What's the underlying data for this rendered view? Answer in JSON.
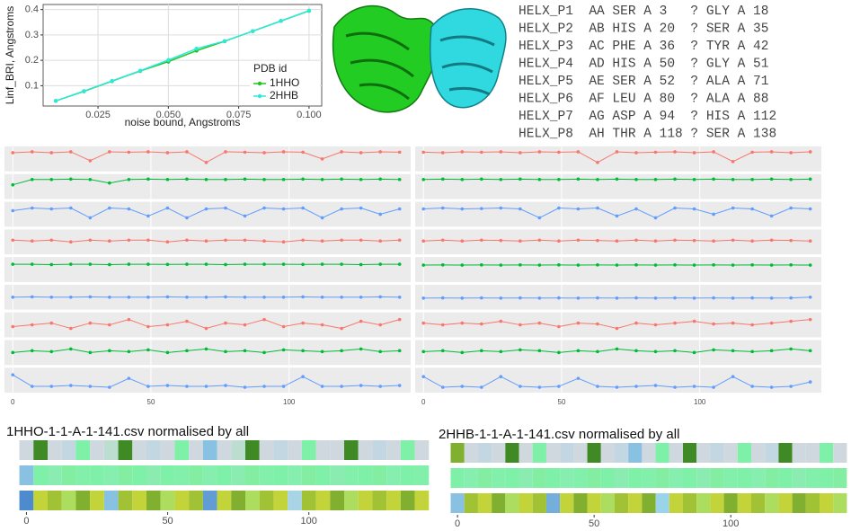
{
  "chart_data": [
    {
      "type": "line",
      "ylabel": "Linf_BRI, Angstroms",
      "xlabel": "noise bound, Angstroms",
      "legend_title": "PDB id",
      "legend": "bottom-right",
      "grid": true,
      "x": [
        0.01,
        0.02,
        0.03,
        0.04,
        0.05,
        0.06,
        0.07,
        0.08,
        0.09,
        0.1
      ],
      "series": [
        {
          "name": "1HHO",
          "color": "#1fc41f",
          "values": [
            0.04,
            0.078,
            0.118,
            0.158,
            0.195,
            0.238,
            0.275,
            0.315,
            0.355,
            0.395
          ]
        },
        {
          "name": "2HHB",
          "color": "#2ee8dc",
          "values": [
            0.04,
            0.079,
            0.119,
            0.159,
            0.201,
            0.246,
            0.276,
            0.315,
            0.355,
            0.396
          ]
        }
      ],
      "xlim": [
        0.0055,
        0.1045
      ],
      "ylim": [
        0.02,
        0.42
      ],
      "xticks": [
        {
          "value": 0.025,
          "label": "0.025"
        },
        {
          "value": 0.05,
          "label": "0.050"
        },
        {
          "value": 0.075,
          "label": "0.075"
        },
        {
          "value": 0.1,
          "label": "0.100"
        }
      ],
      "yticks": [
        0.1,
        0.2,
        0.3,
        0.4
      ]
    },
    {
      "type": "strips",
      "xlim": [
        -3,
        144
      ],
      "ylim": [
        0,
        1
      ],
      "xticks": [
        0,
        50,
        100
      ],
      "x": [
        0,
        7,
        14,
        21,
        28,
        35,
        42,
        49,
        56,
        63,
        70,
        77,
        84,
        91,
        98,
        105,
        112,
        119,
        126,
        133,
        140
      ],
      "series": [
        {
          "color": "#f8766d",
          "values": [
            0.85,
            0.9,
            0.85,
            0.9,
            0.4,
            0.9,
            0.88,
            0.9,
            0.85,
            0.9,
            0.3,
            0.9,
            0.88,
            0.85,
            0.9,
            0.88,
            0.5,
            0.9,
            0.85,
            0.9,
            0.88
          ]
        },
        {
          "color": "#00ba38",
          "values": [
            0.6,
            0.9,
            0.9,
            0.92,
            0.9,
            0.7,
            0.9,
            0.92,
            0.9,
            0.92,
            0.9,
            0.9,
            0.92,
            0.9,
            0.9,
            0.92,
            0.9,
            0.92,
            0.9,
            0.92,
            0.9
          ]
        },
        {
          "color": "#619cff",
          "values": [
            0.7,
            0.85,
            0.8,
            0.85,
            0.3,
            0.85,
            0.8,
            0.4,
            0.85,
            0.3,
            0.8,
            0.85,
            0.4,
            0.85,
            0.8,
            0.85,
            0.3,
            0.8,
            0.85,
            0.5,
            0.8
          ]
        },
        {
          "color": "#f8766d",
          "values": [
            0.6,
            0.55,
            0.6,
            0.5,
            0.6,
            0.55,
            0.6,
            0.6,
            0.5,
            0.6,
            0.55,
            0.6,
            0.6,
            0.55,
            0.5,
            0.6,
            0.55,
            0.6,
            0.6,
            0.55,
            0.6
          ]
        },
        {
          "color": "#00ba38",
          "values": [
            0.8,
            0.8,
            0.78,
            0.8,
            0.8,
            0.78,
            0.8,
            0.8,
            0.79,
            0.8,
            0.8,
            0.78,
            0.8,
            0.8,
            0.8,
            0.79,
            0.8,
            0.8,
            0.78,
            0.8,
            0.8
          ]
        },
        {
          "color": "#619cff",
          "values": [
            0.5,
            0.52,
            0.5,
            0.5,
            0.52,
            0.5,
            0.5,
            0.5,
            0.52,
            0.5,
            0.5,
            0.52,
            0.5,
            0.5,
            0.5,
            0.52,
            0.5,
            0.5,
            0.5,
            0.52,
            0.5
          ]
        },
        {
          "color": "#f8766d",
          "values": [
            0.4,
            0.5,
            0.6,
            0.3,
            0.6,
            0.5,
            0.8,
            0.4,
            0.5,
            0.7,
            0.3,
            0.6,
            0.5,
            0.8,
            0.4,
            0.6,
            0.5,
            0.3,
            0.7,
            0.5,
            0.8
          ]
        },
        {
          "color": "#00ba38",
          "values": [
            0.5,
            0.6,
            0.55,
            0.7,
            0.5,
            0.6,
            0.55,
            0.65,
            0.5,
            0.6,
            0.7,
            0.55,
            0.6,
            0.5,
            0.65,
            0.6,
            0.55,
            0.6,
            0.7,
            0.55,
            0.6
          ]
        },
        {
          "color": "#619cff",
          "values": [
            0.8,
            0.15,
            0.15,
            0.2,
            0.15,
            0.1,
            0.6,
            0.15,
            0.2,
            0.15,
            0.15,
            0.2,
            0.1,
            0.15,
            0.15,
            0.7,
            0.15,
            0.15,
            0.2,
            0.15,
            0.2
          ]
        }
      ]
    },
    {
      "type": "strips",
      "xlim": [
        -3,
        144
      ],
      "ylim": [
        0,
        1
      ],
      "xticks": [
        0,
        50,
        100
      ],
      "x": [
        0,
        7,
        14,
        21,
        28,
        35,
        42,
        49,
        56,
        63,
        70,
        77,
        84,
        91,
        98,
        105,
        112,
        119,
        126,
        133,
        140
      ],
      "series": [
        {
          "color": "#f8766d",
          "values": [
            0.88,
            0.85,
            0.9,
            0.88,
            0.9,
            0.85,
            0.9,
            0.88,
            0.9,
            0.3,
            0.9,
            0.85,
            0.88,
            0.9,
            0.85,
            0.9,
            0.35,
            0.88,
            0.9,
            0.85,
            0.9
          ]
        },
        {
          "color": "#00ba38",
          "values": [
            0.9,
            0.92,
            0.9,
            0.92,
            0.9,
            0.92,
            0.9,
            0.9,
            0.92,
            0.9,
            0.92,
            0.9,
            0.9,
            0.92,
            0.9,
            0.92,
            0.9,
            0.9,
            0.92,
            0.9,
            0.92
          ]
        },
        {
          "color": "#619cff",
          "values": [
            0.8,
            0.85,
            0.8,
            0.82,
            0.85,
            0.8,
            0.3,
            0.85,
            0.8,
            0.85,
            0.4,
            0.8,
            0.3,
            0.85,
            0.8,
            0.5,
            0.85,
            0.8,
            0.4,
            0.85,
            0.8
          ]
        },
        {
          "color": "#f8766d",
          "values": [
            0.55,
            0.6,
            0.55,
            0.6,
            0.58,
            0.55,
            0.6,
            0.55,
            0.6,
            0.58,
            0.55,
            0.6,
            0.55,
            0.6,
            0.58,
            0.55,
            0.6,
            0.55,
            0.6,
            0.58,
            0.55
          ]
        },
        {
          "color": "#00ba38",
          "values": [
            0.75,
            0.76,
            0.75,
            0.76,
            0.75,
            0.76,
            0.75,
            0.76,
            0.75,
            0.76,
            0.75,
            0.76,
            0.75,
            0.76,
            0.75,
            0.76,
            0.75,
            0.76,
            0.75,
            0.76,
            0.75
          ]
        },
        {
          "color": "#619cff",
          "values": [
            0.45,
            0.46,
            0.45,
            0.46,
            0.45,
            0.46,
            0.45,
            0.46,
            0.45,
            0.46,
            0.45,
            0.46,
            0.45,
            0.46,
            0.45,
            0.46,
            0.45,
            0.46,
            0.45,
            0.46,
            0.5
          ]
        },
        {
          "color": "#f8766d",
          "values": [
            0.6,
            0.5,
            0.6,
            0.55,
            0.7,
            0.5,
            0.6,
            0.4,
            0.6,
            0.55,
            0.3,
            0.6,
            0.5,
            0.6,
            0.7,
            0.55,
            0.6,
            0.5,
            0.6,
            0.7,
            0.8
          ]
        },
        {
          "color": "#00ba38",
          "values": [
            0.55,
            0.6,
            0.5,
            0.6,
            0.55,
            0.65,
            0.6,
            0.5,
            0.6,
            0.55,
            0.7,
            0.6,
            0.55,
            0.6,
            0.5,
            0.65,
            0.6,
            0.55,
            0.6,
            0.7,
            0.6
          ]
        },
        {
          "color": "#619cff",
          "values": [
            0.7,
            0.1,
            0.15,
            0.1,
            0.7,
            0.15,
            0.1,
            0.15,
            0.6,
            0.15,
            0.1,
            0.15,
            0.2,
            0.1,
            0.15,
            0.1,
            0.7,
            0.15,
            0.1,
            0.15,
            0.4
          ]
        }
      ]
    },
    {
      "type": "heatmap",
      "title": "1HHO-1-1-A-1-141.csv normalised by all",
      "xlim": [
        -3,
        144
      ],
      "xticks": [
        0,
        50,
        100
      ],
      "colorscale": [
        [
          0,
          "#3a78c8"
        ],
        [
          0.25,
          "#9bd3e8"
        ],
        [
          0.45,
          "#cfd8df"
        ],
        [
          0.65,
          "#7ef0a8"
        ],
        [
          0.8,
          "#c3d43a"
        ],
        [
          1,
          "#3f8a24"
        ]
      ],
      "x": [
        0,
        5,
        10,
        15,
        20,
        25,
        30,
        35,
        40,
        45,
        50,
        55,
        60,
        65,
        70,
        75,
        80,
        85,
        90,
        95,
        100,
        105,
        110,
        115,
        120,
        125,
        130,
        135,
        140
      ],
      "rows": [
        [
          0.45,
          1,
          0.45,
          0.4,
          0.65,
          0.45,
          0.5,
          1,
          0.45,
          0.4,
          0.45,
          0.65,
          0.45,
          0.2,
          0.45,
          0.5,
          1,
          0.45,
          0.4,
          0.45,
          0.65,
          0.45,
          0.45,
          1,
          0.45,
          0.4,
          0.45,
          0.65,
          0.45
        ],
        [
          0.2,
          0.65,
          0.62,
          0.66,
          0.64,
          0.65,
          0.63,
          0.66,
          0.65,
          0.62,
          0.65,
          0.64,
          0.66,
          0.63,
          0.65,
          0.62,
          0.66,
          0.64,
          0.65,
          0.63,
          0.66,
          0.65,
          0.62,
          0.64,
          0.65,
          0.66,
          0.63,
          0.65,
          0.64
        ],
        [
          0.05,
          0.8,
          0.85,
          0.75,
          0.9,
          0.8,
          0.2,
          0.85,
          0.8,
          0.9,
          0.75,
          0.8,
          0.85,
          0.1,
          0.8,
          0.9,
          0.75,
          0.85,
          0.8,
          0.3,
          0.85,
          0.8,
          0.9,
          0.75,
          0.8,
          0.85,
          0.8,
          0.9,
          0.8
        ]
      ]
    },
    {
      "type": "heatmap",
      "title": "2HHB-1-1-A-1-141.csv normalised by all",
      "xlim": [
        -3,
        144
      ],
      "xticks": [
        0,
        50,
        100
      ],
      "colorscale": [
        [
          0,
          "#3a78c8"
        ],
        [
          0.25,
          "#9bd3e8"
        ],
        [
          0.45,
          "#cfd8df"
        ],
        [
          0.65,
          "#7ef0a8"
        ],
        [
          0.8,
          "#c3d43a"
        ],
        [
          1,
          "#3f8a24"
        ]
      ],
      "x": [
        0,
        5,
        10,
        15,
        20,
        25,
        30,
        35,
        40,
        45,
        50,
        55,
        60,
        65,
        70,
        75,
        80,
        85,
        90,
        95,
        100,
        105,
        110,
        115,
        120,
        125,
        130,
        135,
        140
      ],
      "rows": [
        [
          0.9,
          0.45,
          0.4,
          0.45,
          1,
          0.45,
          0.65,
          0.45,
          0.4,
          0.45,
          1,
          0.45,
          0.4,
          0.2,
          0.45,
          0.65,
          0.45,
          1,
          0.45,
          0.4,
          0.45,
          0.65,
          0.45,
          0.4,
          1,
          0.45,
          0.45,
          0.65,
          0.45
        ],
        [
          0.65,
          0.63,
          0.66,
          0.64,
          0.65,
          0.62,
          0.66,
          0.65,
          0.63,
          0.64,
          0.66,
          0.65,
          0.62,
          0.65,
          0.64,
          0.66,
          0.63,
          0.65,
          0.62,
          0.66,
          0.64,
          0.65,
          0.63,
          0.66,
          0.65,
          0.62,
          0.64,
          0.65,
          0.66
        ],
        [
          0.2,
          0.85,
          0.8,
          0.9,
          0.75,
          0.8,
          0.85,
          0.15,
          0.8,
          0.9,
          0.8,
          0.75,
          0.85,
          0.8,
          0.9,
          0.25,
          0.8,
          0.85,
          0.75,
          0.8,
          0.9,
          0.8,
          0.85,
          0.75,
          0.8,
          0.9,
          0.85,
          0.8,
          0.75
        ]
      ]
    }
  ],
  "helix_table": {
    "rows": [
      "HELX_P1  AA SER A 3   ? GLY A 18",
      "HELX_P2  AB HIS A 20  ? SER A 35",
      "HELX_P3  AC PHE A 36  ? TYR A 42",
      "HELX_P4  AD HIS A 50  ? GLY A 51",
      "HELX_P5  AE SER A 52  ? ALA A 71",
      "HELX_P6  AF LEU A 80  ? ALA A 88",
      "HELX_P7  AG ASP A 94  ? HIS A 112",
      "HELX_P8  AH THR A 118 ? SER A 138"
    ]
  }
}
